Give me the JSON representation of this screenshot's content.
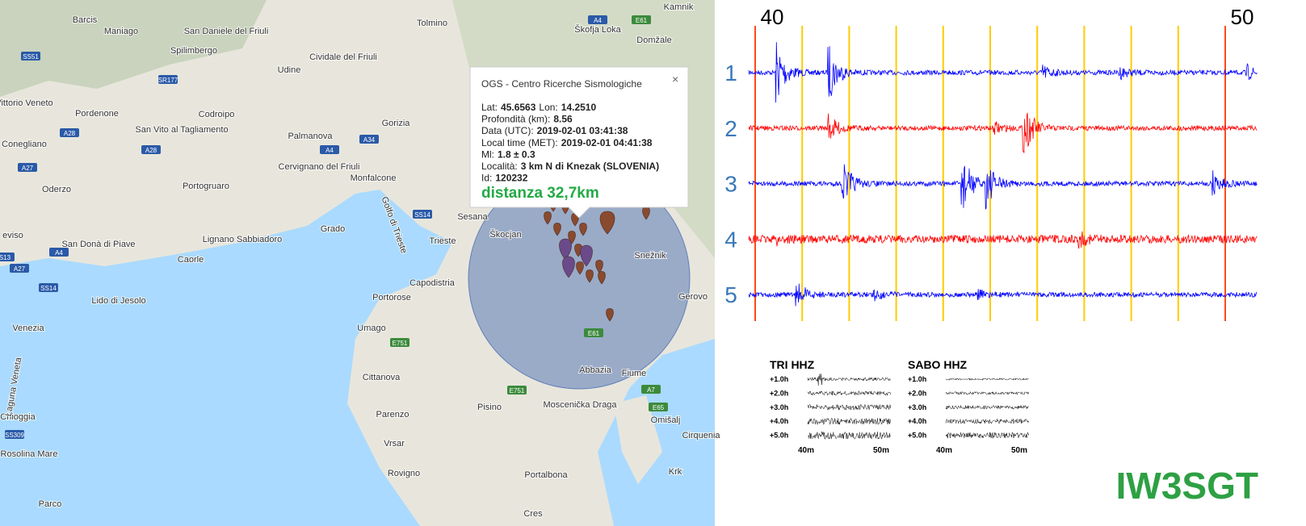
{
  "map": {
    "places": [
      "Barcis",
      "Maniago",
      "San Daniele del Friuli",
      "Spilimbergo",
      "Udine",
      "Cividale del Friuli",
      "Tolmino",
      "Škofja Loka",
      "Kamnik",
      "Domžale",
      "Vittorio Veneto",
      "Pordenone",
      "Codroipo",
      "San Vito al Tagliamento",
      "Palmanova",
      "Gorizia",
      "Conegliano",
      "Cervignano del Friuli",
      "Monfalcone",
      "Oderzo",
      "Portogruaro",
      "Grado",
      "Lignano Sabbiadoro",
      "Sesana",
      "Trieste",
      "Škocjan",
      "eviso",
      "San Donà di Piave",
      "Caorle",
      "Capodistria",
      "Portorose",
      "Lido di Jesolo",
      "Venezia",
      "Umago",
      "Cittanova",
      "Parenzo",
      "Vrsar",
      "Rovigno",
      "Chioggia",
      "Rosolina Mare",
      "Pisino",
      "Abbazia",
      "Fiume",
      "Moscenička Draga",
      "Omišalj",
      "Krk",
      "Cres",
      "Cirquenia",
      "Gerovo",
      "Snežnik",
      "Parco",
      "Portalbona",
      "Golfo di Trieste",
      "Laguna Veneta"
    ],
    "roads": [
      "SS51",
      "SR177",
      "A28",
      "A28",
      "A4",
      "A27",
      "A34",
      "A4",
      "SS14",
      "SS14",
      "A27",
      "A4",
      "E61",
      "E61",
      "E751",
      "E751",
      "A7",
      "E65",
      "SS309",
      "S13"
    ]
  },
  "popup": {
    "source": "OGS - Centro Ricerche Sismologiche",
    "close": "×",
    "lines": [
      [
        {
          "label": "Lat:",
          "value": "45.6563"
        },
        {
          "label": "Lon:",
          "value": "14.2510"
        }
      ],
      [
        {
          "label": "Profondità (km):",
          "value": "8.56"
        }
      ],
      [
        {
          "label": "Data (UTC):",
          "value": "2019-02-01 03:41:38"
        }
      ],
      [
        {
          "label": "Local time (MET):",
          "value": "2019-02-01 04:41:38"
        }
      ],
      [
        {
          "label": "Ml:",
          "value": "1.8 ± 0.3"
        }
      ],
      [
        {
          "label": "Località:",
          "value": "3 km N di Knezak (SLOVENIA)"
        }
      ],
      [
        {
          "label": "Id:",
          "value": "120232"
        }
      ]
    ],
    "distance": "distanza 32,7km"
  },
  "seismogram": {
    "minute_labels": [
      "40",
      "50"
    ],
    "rows": [
      {
        "label": "1",
        "color": "#0000ff"
      },
      {
        "label": "2",
        "color": "#ff0000"
      },
      {
        "label": "3",
        "color": "#0000ff"
      },
      {
        "label": "4",
        "color": "#ff0000"
      },
      {
        "label": "5",
        "color": "#0000ff"
      }
    ]
  },
  "panels": [
    {
      "title": "TRI HHZ",
      "hours": [
        "+1.0h",
        "+2.0h",
        "+3.0h",
        "+4.0h",
        "+5.0h"
      ],
      "minutes": [
        "40m",
        "50m"
      ]
    },
    {
      "title": "SABO HHZ",
      "hours": [
        "+1.0h",
        "+2.0h",
        "+3.0h",
        "+4.0h",
        "+5.0h"
      ],
      "minutes": [
        "40m",
        "50m"
      ]
    }
  ],
  "callsign": "IW3SGT"
}
